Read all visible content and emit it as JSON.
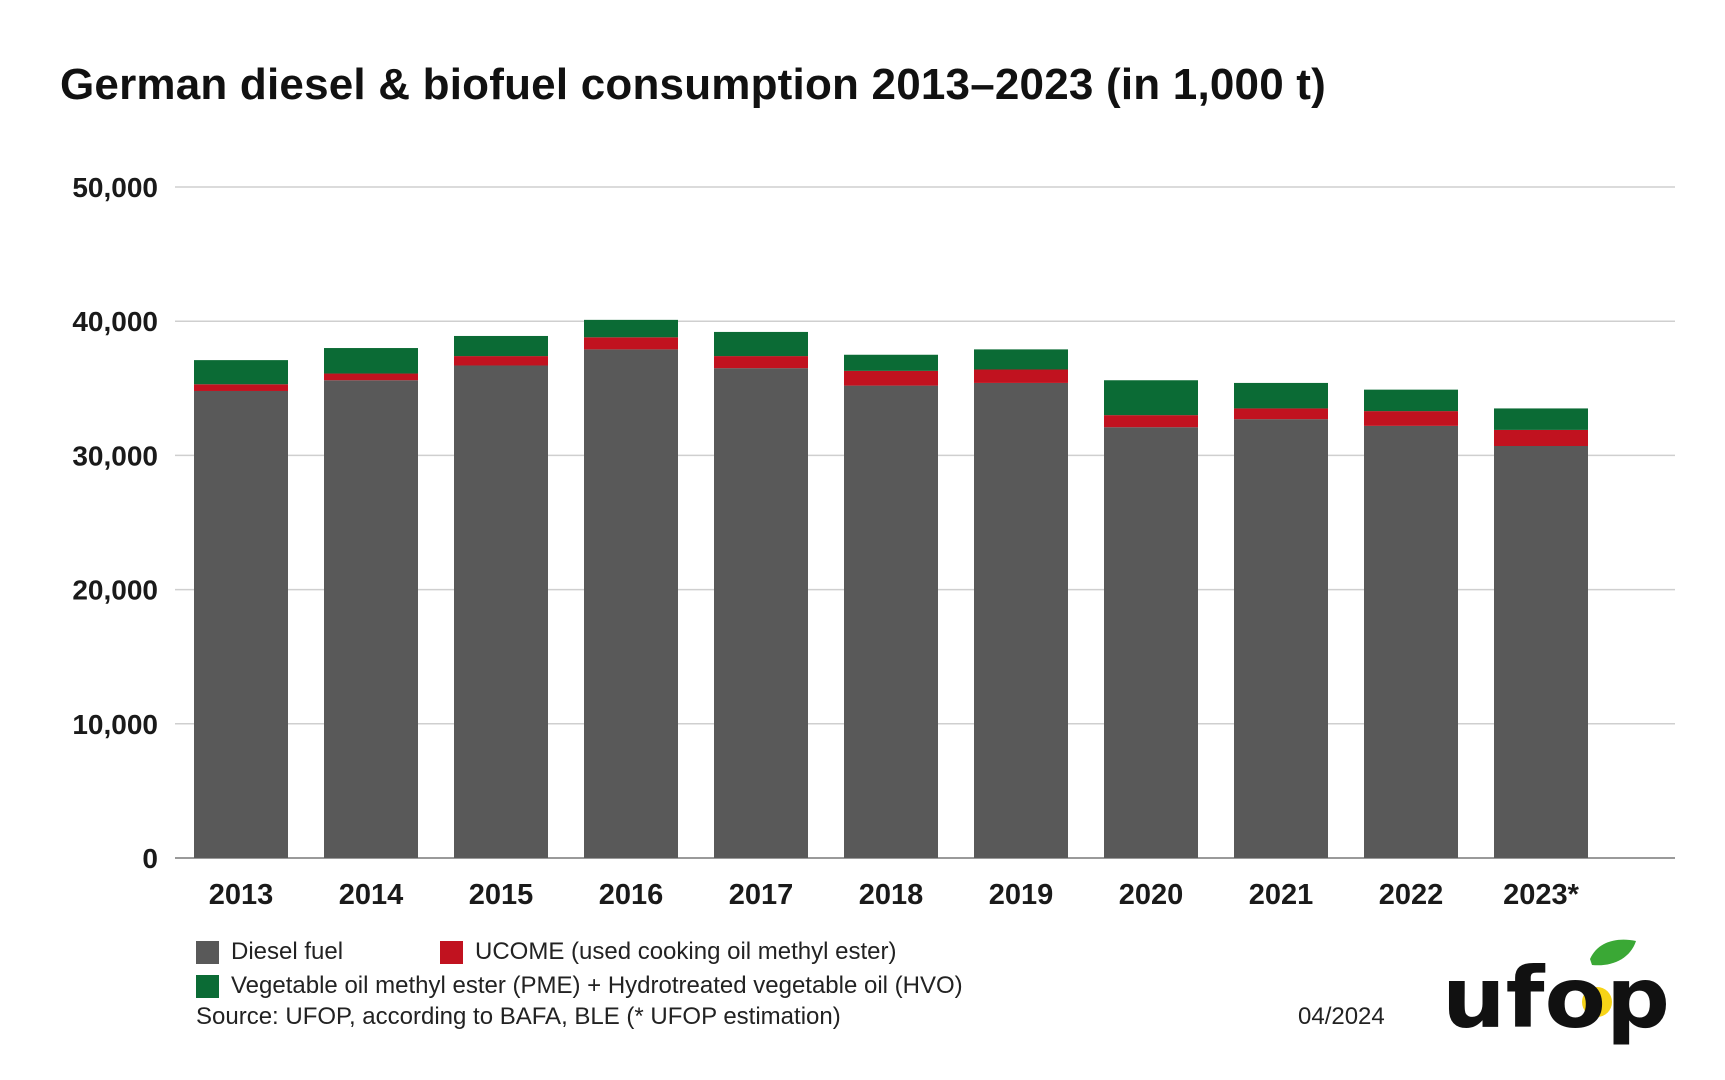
{
  "title": "German diesel & biofuel consumption 2013–2023 (in 1,000 t)",
  "chart_data": {
    "type": "bar",
    "stacked": true,
    "title": "German diesel & biofuel consumption 2013–2023 (in 1,000 t)",
    "xlabel": "",
    "ylabel": "",
    "ylim": [
      0,
      50000
    ],
    "yticks": [
      0,
      10000,
      20000,
      30000,
      40000,
      50000
    ],
    "ytick_labels": [
      "0",
      "10,000",
      "20,000",
      "30,000",
      "40,000",
      "50,000"
    ],
    "grid": true,
    "legend_position": "bottom-left",
    "categories": [
      "2013",
      "2014",
      "2015",
      "2016",
      "2017",
      "2018",
      "2019",
      "2020",
      "2021",
      "2022",
      "2023*"
    ],
    "series": [
      {
        "name": "Diesel fuel",
        "color": "#595959",
        "values": [
          34800,
          35600,
          36700,
          37900,
          36500,
          35200,
          35400,
          32100,
          32700,
          32200,
          30700
        ]
      },
      {
        "name": "UCOME (used cooking oil methyl ester)",
        "color": "#c1121f",
        "values": [
          500,
          500,
          700,
          900,
          900,
          1100,
          1000,
          900,
          800,
          1100,
          1200
        ]
      },
      {
        "name": "Vegetable oil methyl ester (PME) + Hydrotreated vegetable oil (HVO)",
        "color": "#0b6b35",
        "values": [
          1800,
          1900,
          1500,
          1300,
          1800,
          1200,
          1500,
          2600,
          1900,
          1600,
          1600
        ]
      }
    ]
  },
  "legend": {
    "diesel": "Diesel fuel",
    "ucome": "UCOME (used cooking oil methyl ester)",
    "pme_hvo": "Vegetable oil methyl ester (PME) + Hydrotreated vegetable oil (HVO)"
  },
  "source": "Source: UFOP, according to BAFA, BLE (* UFOP estimation)",
  "date": "04/2024",
  "logo": {
    "text": "ufop",
    "leaf_color": "#3aa835",
    "drop_color": "#f7d417",
    "text_color": "#111111"
  }
}
